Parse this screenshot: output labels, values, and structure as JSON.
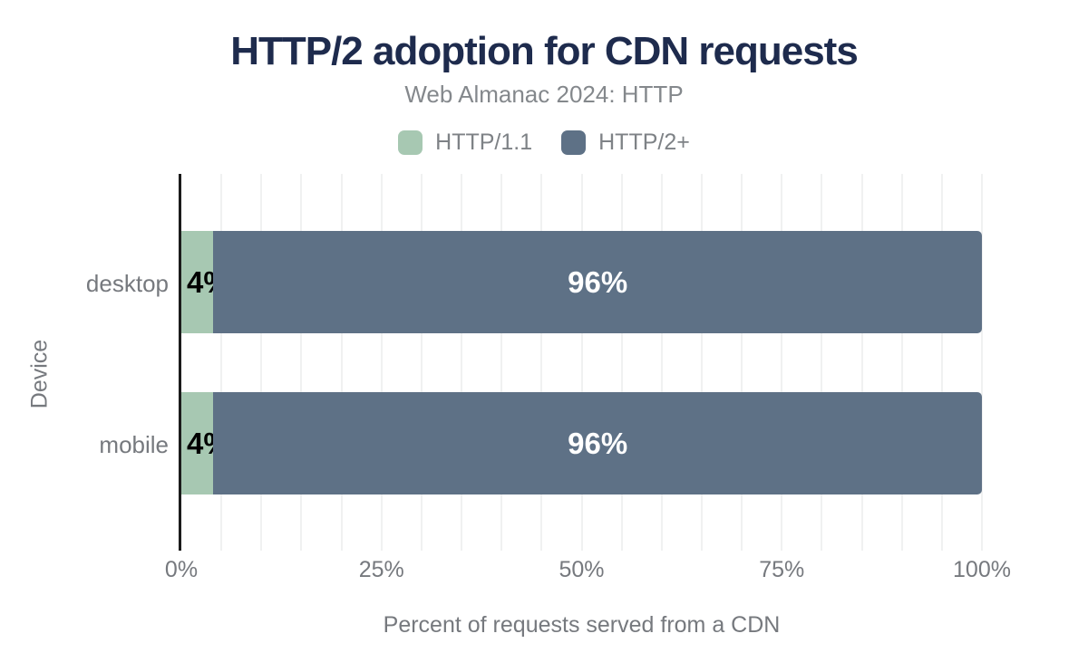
{
  "title": "HTTP/2 adoption for CDN requests",
  "subtitle": "Web Almanac 2024: HTTP",
  "legend": {
    "items": [
      {
        "label": "HTTP/1.1",
        "color": "#a7c8b2"
      },
      {
        "label": "HTTP/2+",
        "color": "#5e7186"
      }
    ]
  },
  "colors": {
    "title": "#1e2b4d",
    "subtitle": "#84888c",
    "axis_text": "#76797e",
    "axis_line": "#1b1b1b",
    "gridline": "#f0f1f1",
    "background": "#ffffff"
  },
  "chart_data": {
    "type": "bar",
    "orientation": "horizontal",
    "stacked": true,
    "title": "HTTP/2 adoption for CDN requests",
    "subtitle": "Web Almanac 2024: HTTP",
    "xlabel": "Percent of requests served from a CDN",
    "ylabel": "Device",
    "categories": [
      "desktop",
      "mobile"
    ],
    "series": [
      {
        "name": "HTTP/1.1",
        "color": "#a7c8b2",
        "values": [
          4,
          4
        ],
        "labels": [
          "4%",
          "4%"
        ],
        "label_color": "#000000",
        "label_halo": "#a7c8b2"
      },
      {
        "name": "HTTP/2+",
        "color": "#5e7186",
        "values": [
          96,
          96
        ],
        "labels": [
          "96%",
          "96%"
        ],
        "label_color": "#ffffff",
        "label_halo": ""
      }
    ],
    "x_ticks": [
      {
        "label": "0%",
        "value": 0
      },
      {
        "label": "25%",
        "value": 25
      },
      {
        "label": "50%",
        "value": 50
      },
      {
        "label": "75%",
        "value": 75
      },
      {
        "label": "100%",
        "value": 100
      }
    ],
    "xlim": [
      0,
      100
    ],
    "grid_interval": 5,
    "grid": "vertical-minor",
    "legend_position": "top"
  }
}
